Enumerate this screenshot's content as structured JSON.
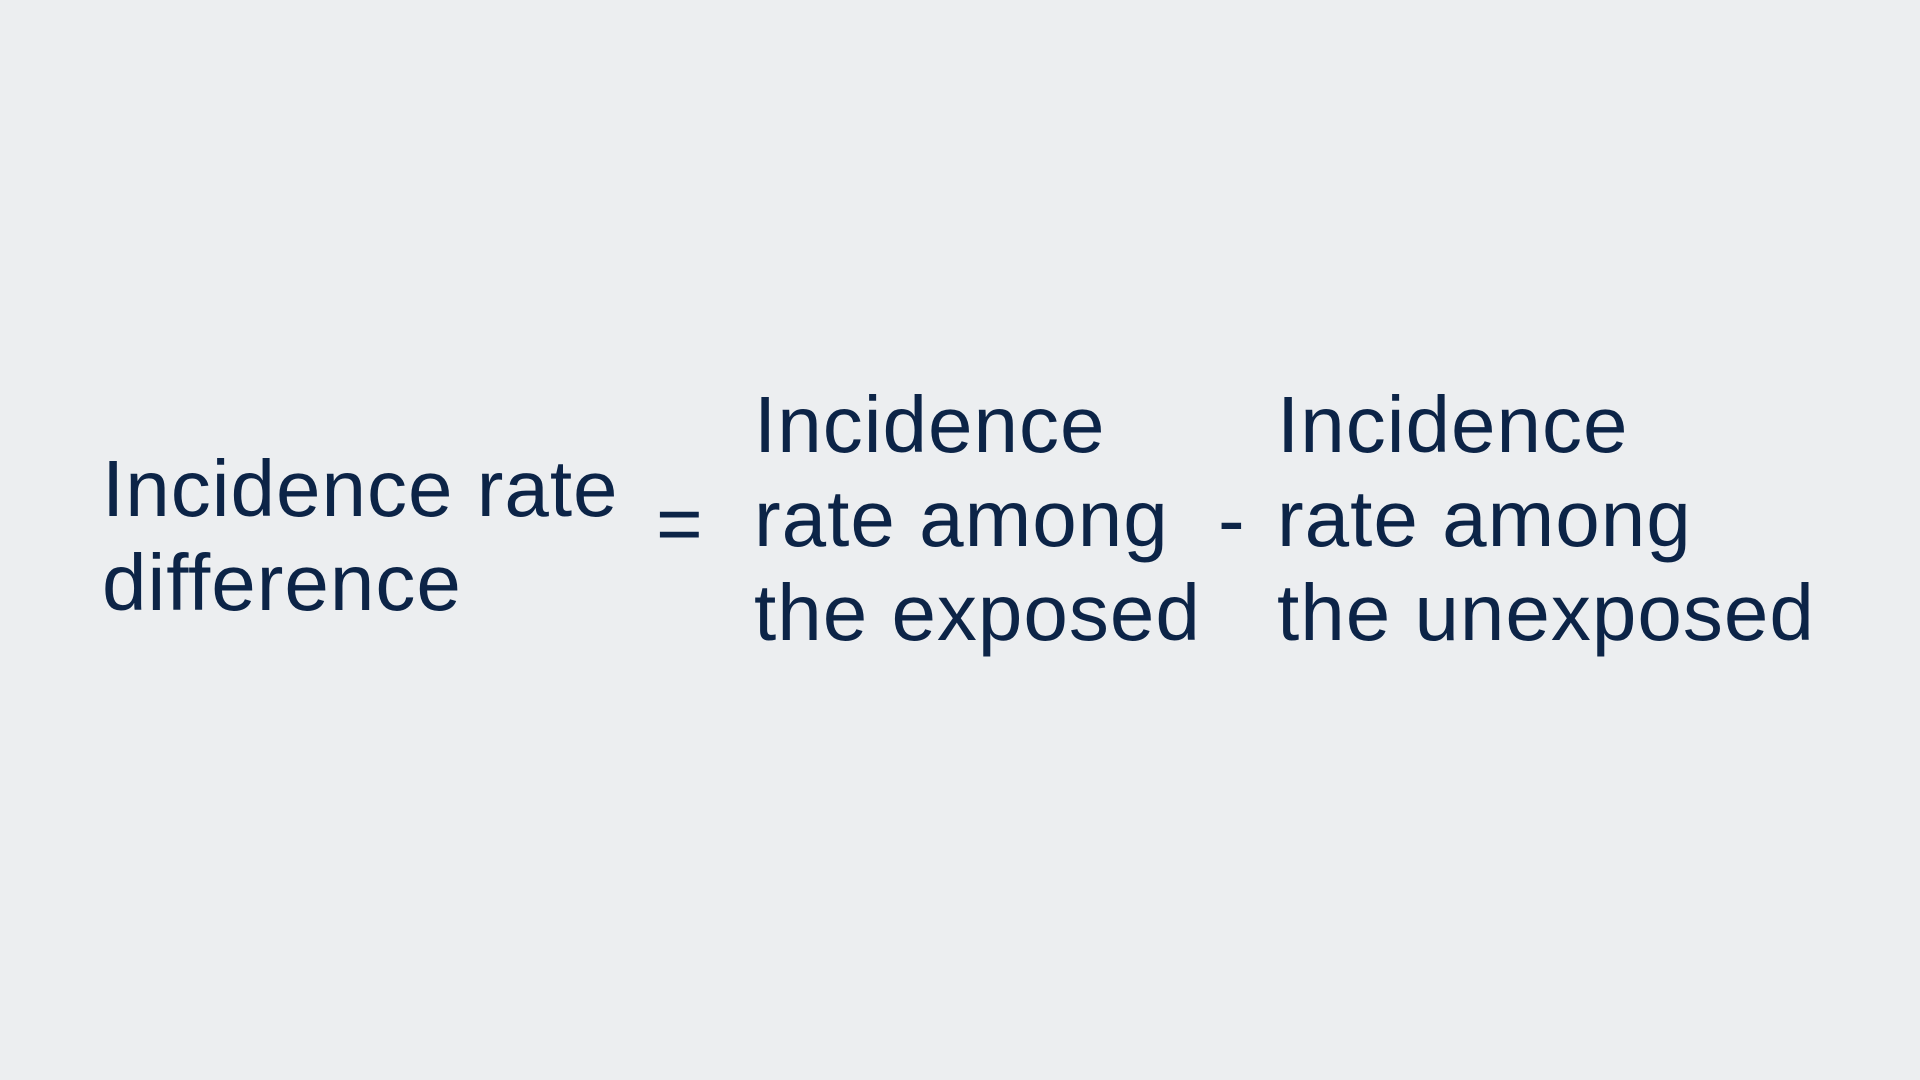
{
  "formula": {
    "lhs": [
      "Incidence rate",
      "difference"
    ],
    "equals": "=",
    "exposed_term": [
      "Incidence",
      "rate among",
      "the exposed"
    ],
    "minus": "-",
    "unexposed_term": [
      "Incidence",
      "rate among",
      "the unexposed"
    ]
  },
  "colors": {
    "background": "#eceef0",
    "text": "#0c2447"
  }
}
